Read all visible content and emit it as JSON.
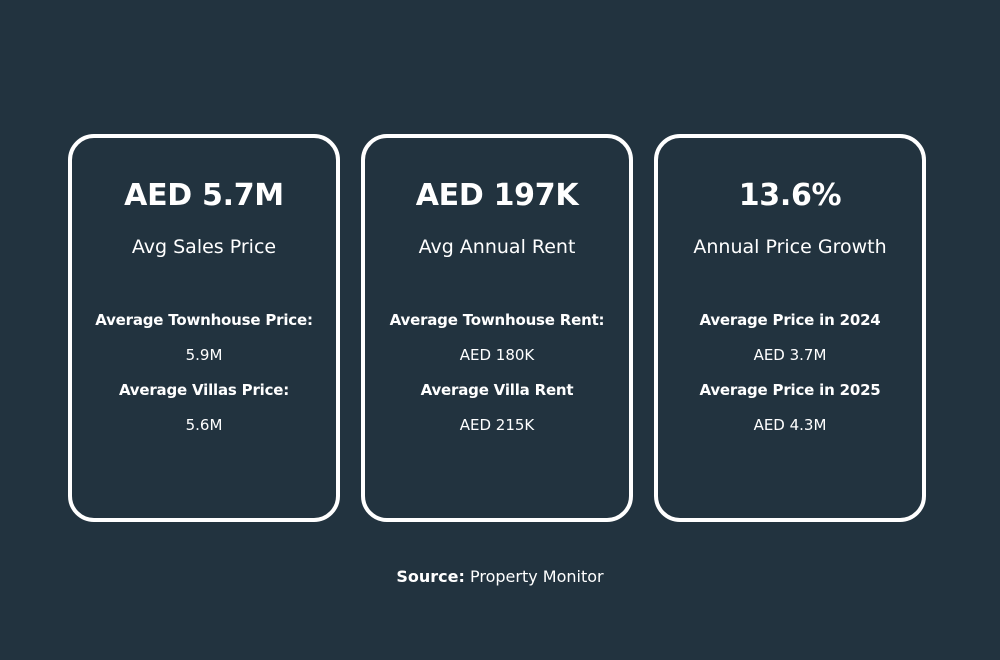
{
  "cards": [
    {
      "metric": "AED 5.7M",
      "metric_label": "Avg Sales Price",
      "details": [
        {
          "label": "Average Townhouse Price:",
          "value": "5.9M"
        },
        {
          "label": "Average Villas Price:",
          "value": "5.6M"
        }
      ]
    },
    {
      "metric": "AED 197K",
      "metric_label": "Avg Annual Rent",
      "details": [
        {
          "label": "Average Townhouse Rent:",
          "value": "AED 180K"
        },
        {
          "label": "Average Villa Rent",
          "value": "AED 215K"
        }
      ]
    },
    {
      "metric": "13.6%",
      "metric_label": "Annual Price Growth",
      "details": [
        {
          "label": "Average Price in 2024",
          "value": "AED  3.7M"
        },
        {
          "label": "Average Price in 2025",
          "value": "AED 4.3M"
        }
      ]
    }
  ],
  "source": {
    "key": "Source:",
    "value": "Property Monitor"
  },
  "colors": {
    "background": "#22333f",
    "text": "#ffffff",
    "card_border": "#ffffff"
  }
}
